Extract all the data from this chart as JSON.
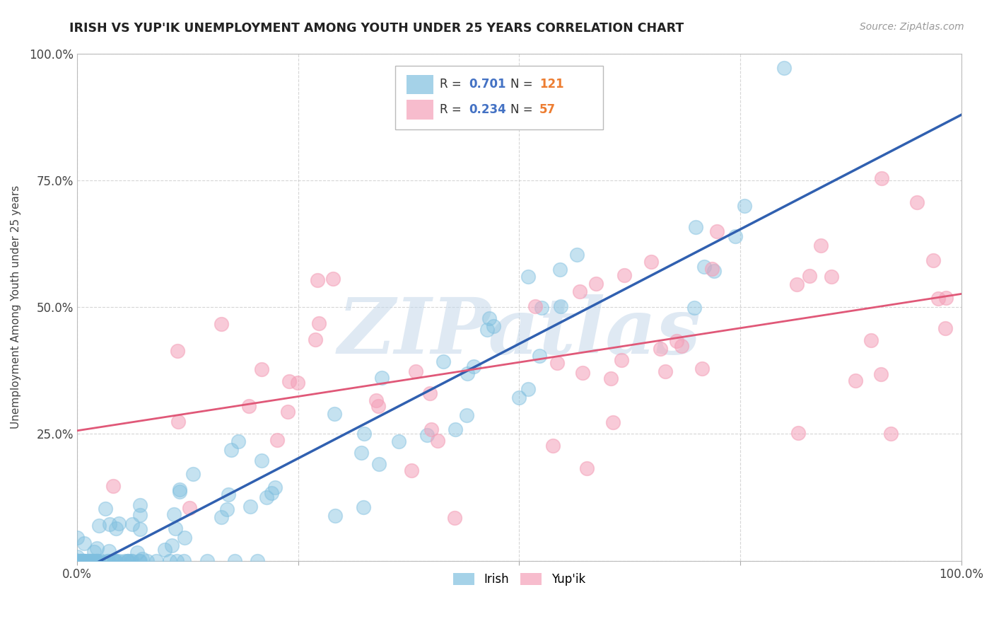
{
  "title": "IRISH VS YUP'IK UNEMPLOYMENT AMONG YOUTH UNDER 25 YEARS CORRELATION CHART",
  "source": "Source: ZipAtlas.com",
  "ylabel": "Unemployment Among Youth under 25 years",
  "irish_color": "#7fbfdf",
  "yupik_color": "#f4a0b8",
  "irish_line_color": "#3060b0",
  "yupik_line_color": "#e05878",
  "legend_r_color": "#4472c4",
  "legend_n_color": "#ed7d31",
  "irish_R": 0.701,
  "irish_N": 121,
  "yupik_R": 0.234,
  "yupik_N": 57,
  "background_color": "#ffffff",
  "grid_color": "#cccccc",
  "watermark": "ZIPatlas"
}
